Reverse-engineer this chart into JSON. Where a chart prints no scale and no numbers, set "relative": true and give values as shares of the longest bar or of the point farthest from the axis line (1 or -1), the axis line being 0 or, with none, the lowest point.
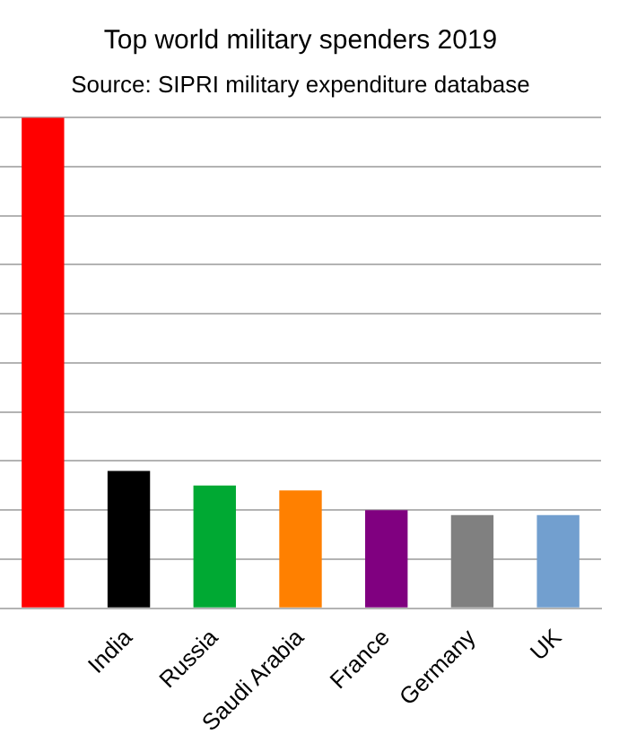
{
  "chart_data": {
    "type": "bar",
    "title": "Top world military spenders 2019",
    "subtitle": "Source: SIPRI military expenditure database",
    "categories": [
      null,
      "India",
      "Russia",
      "Saudi Arabia",
      "France",
      "Germany",
      "UK"
    ],
    "values": [
      1,
      0.28,
      0.25,
      0.24,
      0.2,
      0.19,
      0.19
    ],
    "colors": [
      "#ff0000",
      "#000000",
      "#00a933",
      "#ff8000",
      "#800080",
      "#808080",
      "#729fcf"
    ],
    "relative": true,
    "grid": "y",
    "legend": false
  }
}
